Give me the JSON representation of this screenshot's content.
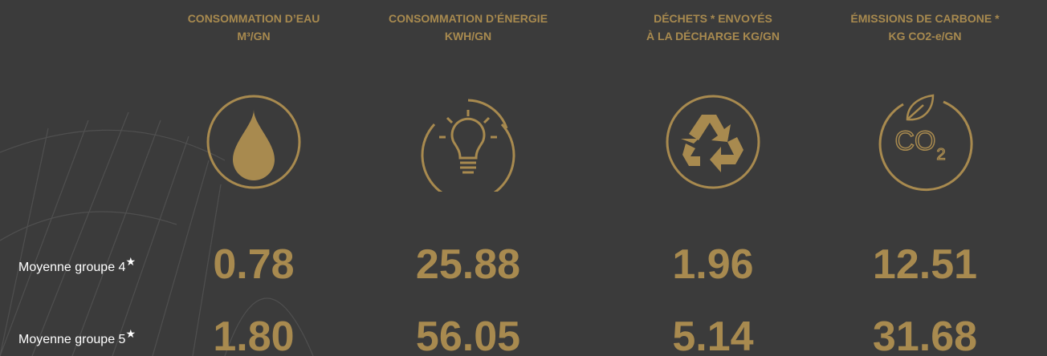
{
  "columns": [
    {
      "title": [
        "CONSOMMATION D’EAU",
        "M³/GN"
      ]
    },
    {
      "title": [
        "CONSOMMATION D’ÉNERGIE",
        "KWH/GN"
      ]
    },
    {
      "title": [
        "DÉCHETS * ENVOYÉS",
        "À LA DÉCHARGE KG/GN"
      ]
    },
    {
      "title": [
        "ÉMISSIONS DE CARBONE *",
        "KG CO2-e/GN"
      ],
      "icon_text": [
        "CO",
        "2"
      ]
    }
  ],
  "rows": [
    {
      "label": "Moyenne groupe 4",
      "marker": "★",
      "values": [
        "0.78",
        "25.88",
        "1.96",
        "12.51"
      ]
    },
    {
      "label": "Moyenne groupe 5",
      "marker": "★",
      "values": [
        "1.80",
        "56.05",
        "5.14",
        "31.68"
      ]
    }
  ]
}
